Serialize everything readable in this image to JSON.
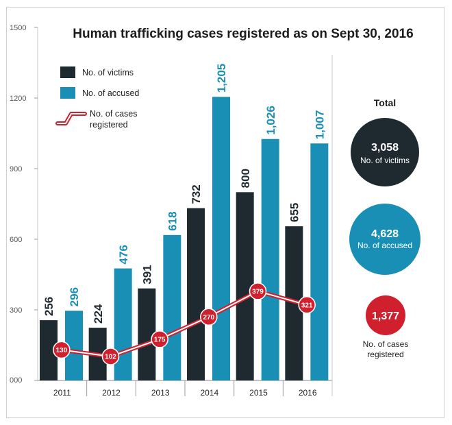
{
  "chart_data": {
    "type": "bar",
    "title": "Human trafficking cases registered as on Sept 30, 2016",
    "categories": [
      "2011",
      "2012",
      "2013",
      "2014",
      "2015",
      "2016"
    ],
    "ylim": [
      0,
      1500
    ],
    "yticks": [
      "000",
      "300",
      "600",
      "900",
      "1200",
      "1500"
    ],
    "grid": false,
    "legend_position": "top-left",
    "series": [
      {
        "name": "No. of victims",
        "kind": "bar",
        "color": "#1f2a30",
        "values": [
          256,
          224,
          391,
          732,
          800,
          655
        ],
        "labels": [
          "256",
          "224",
          "391",
          "732",
          "800",
          "655"
        ]
      },
      {
        "name": "No. of accused",
        "kind": "bar",
        "color": "#1a8fb5",
        "values": [
          296,
          476,
          618,
          1205,
          1026,
          1007
        ],
        "labels": [
          "296",
          "476",
          "618",
          "1,205",
          "1,026",
          "1,007"
        ]
      },
      {
        "name": "No. of cases registered",
        "kind": "line",
        "color": "#d0202e",
        "values": [
          130,
          102,
          175,
          270,
          379,
          321
        ],
        "labels": [
          "130",
          "102",
          "175",
          "270",
          "379",
          "321"
        ]
      }
    ],
    "legend": {
      "victims": "No. of victims",
      "accused": "No. of accused",
      "cases_line1": "No. of cases",
      "cases_line2": "registered"
    },
    "totals": {
      "title": "Total",
      "victims": {
        "value": "3,058",
        "label": "No. of victims",
        "color": "#1f2a30"
      },
      "accused": {
        "value": "4,628",
        "label": "No. of accused",
        "color": "#1a8fb5"
      },
      "cases": {
        "value": "1,377",
        "label_line1": "No. of cases",
        "label_line2": "registered",
        "color": "#d0202e"
      }
    }
  }
}
